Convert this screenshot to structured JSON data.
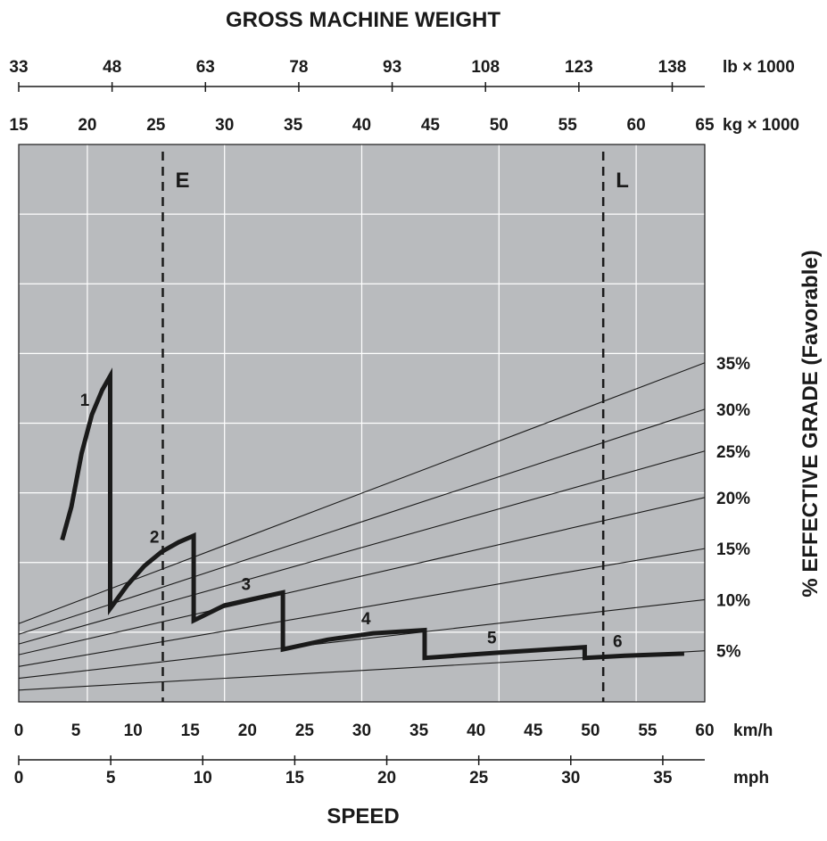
{
  "chart_data": {
    "type": "line",
    "title": "GROSS MACHINE WEIGHT",
    "xlabel": "SPEED",
    "ylabel": "% EFFECTIVE GRADE (Favorable)",
    "axes": {
      "lb": {
        "unit": "lb × 1000",
        "ticks": [
          "33",
          "48",
          "63",
          "78",
          "93",
          "108",
          "123",
          "138"
        ],
        "values": [
          33,
          48,
          63,
          78,
          93,
          108,
          123,
          138
        ]
      },
      "kg": {
        "unit": "kg × 1000",
        "ticks": [
          "15",
          "20",
          "25",
          "30",
          "35",
          "40",
          "45",
          "50",
          "55",
          "60",
          "65"
        ],
        "values": [
          15,
          20,
          25,
          30,
          35,
          40,
          45,
          50,
          55,
          60,
          65
        ]
      },
      "kmh": {
        "unit": "km/h",
        "ticks": [
          "0",
          "5",
          "10",
          "15",
          "20",
          "25",
          "30",
          "35",
          "40",
          "45",
          "50",
          "55",
          "60"
        ],
        "values": [
          0,
          5,
          10,
          15,
          20,
          25,
          30,
          35,
          40,
          45,
          50,
          55,
          60
        ]
      },
      "mph": {
        "unit": "mph",
        "ticks": [
          "0",
          "5",
          "10",
          "15",
          "20",
          "25",
          "30",
          "35"
        ],
        "values": [
          0,
          5,
          10,
          15,
          20,
          25,
          30,
          35
        ]
      }
    },
    "grade_lines": [
      {
        "label": "35%",
        "grade": 35,
        "at_kg15": 7.3
      },
      {
        "label": "30%",
        "grade": 30,
        "at_kg15": 6.3
      },
      {
        "label": "25%",
        "grade": 25,
        "at_kg15": 5.4
      },
      {
        "label": "20%",
        "grade": 20,
        "at_kg15": 4.4
      },
      {
        "label": "15%",
        "grade": 15,
        "at_kg15": 3.3
      },
      {
        "label": "10%",
        "grade": 10,
        "at_kg15": 2.2
      },
      {
        "label": "5%",
        "grade": 5,
        "at_kg15": 1.1
      }
    ],
    "reference_lines": [
      {
        "label": "E",
        "kg": 25.5
      },
      {
        "label": "L",
        "kg": 57.6
      }
    ],
    "gears": [
      {
        "label": "1",
        "points": [
          [
            3.8,
            15.1
          ],
          [
            4.6,
            18.2
          ],
          [
            5.5,
            23.2
          ],
          [
            6.4,
            26.8
          ],
          [
            7.3,
            29.1
          ],
          [
            8.0,
            30.4
          ]
        ]
      },
      {
        "label": "2",
        "points": [
          [
            8.0,
            8.7
          ],
          [
            9.5,
            10.9
          ],
          [
            11.0,
            12.7
          ],
          [
            12.5,
            14.0
          ],
          [
            14.0,
            14.9
          ],
          [
            15.3,
            15.5
          ]
        ]
      },
      {
        "label": "3",
        "points": [
          [
            15.3,
            7.6
          ],
          [
            18.0,
            9.0
          ],
          [
            20.5,
            9.6
          ],
          [
            23.1,
            10.2
          ]
        ]
      },
      {
        "label": "4",
        "points": [
          [
            23.1,
            4.9
          ],
          [
            27.0,
            5.8
          ],
          [
            31.0,
            6.4
          ],
          [
            35.5,
            6.7
          ]
        ]
      },
      {
        "label": "5",
        "points": [
          [
            35.5,
            4.1
          ],
          [
            42.0,
            4.6
          ],
          [
            49.5,
            5.1
          ]
        ]
      },
      {
        "label": "6",
        "points": [
          [
            49.5,
            4.1
          ],
          [
            53.0,
            4.3
          ],
          [
            58.2,
            4.5
          ]
        ]
      }
    ],
    "ylim": [
      0,
      52
    ],
    "xlim_kmh": [
      0,
      60
    ],
    "grid": true,
    "plot_background": "#b9bbbe",
    "line_color": "#1a1a1a"
  }
}
